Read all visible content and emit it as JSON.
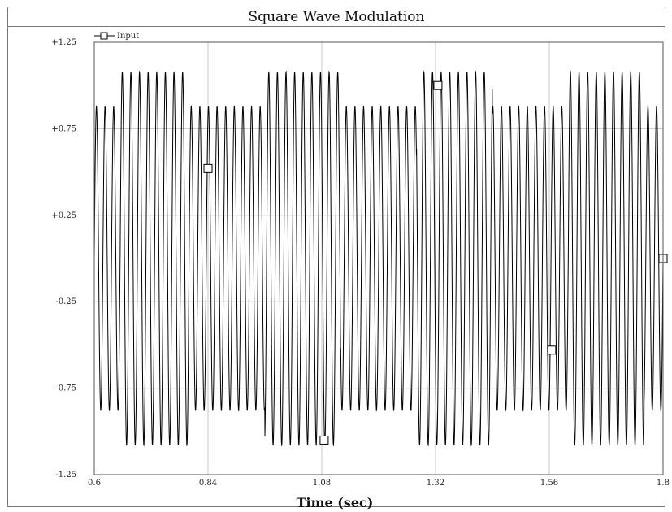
{
  "chart_data": {
    "type": "line",
    "title": "Square Wave Modulation",
    "xlabel": "Time (sec)",
    "ylabel": "",
    "xlim": [
      0.6,
      1.8
    ],
    "ylim": [
      -1.25,
      1.25
    ],
    "x_ticks": [
      "0.6",
      "0.84",
      "1.08",
      "1.32",
      "1.56",
      "1.8"
    ],
    "y_ticks": [
      "+1.25",
      "+0.75",
      "+0.25",
      "-0.25",
      "-0.75",
      "-1.25"
    ],
    "grid": true,
    "legend_position": "top-left",
    "series": [
      {
        "name": "Input",
        "color": "#000000",
        "marker": "open-square",
        "carrier_cycles_per_sec": 55,
        "envelope": [
          {
            "x_start": 0.6,
            "x_end": 0.655,
            "amplitude": 0.88
          },
          {
            "x_start": 0.655,
            "x_end": 0.8,
            "amplitude": 1.08
          },
          {
            "x_start": 0.8,
            "x_end": 0.96,
            "amplitude": 0.88
          },
          {
            "x_start": 0.96,
            "x_end": 1.12,
            "amplitude": 1.08
          },
          {
            "x_start": 1.12,
            "x_end": 1.28,
            "amplitude": 0.88
          },
          {
            "x_start": 1.28,
            "x_end": 1.44,
            "amplitude": 1.08
          },
          {
            "x_start": 1.44,
            "x_end": 1.6,
            "amplitude": 0.88
          },
          {
            "x_start": 1.6,
            "x_end": 1.76,
            "amplitude": 1.08
          },
          {
            "x_start": 1.76,
            "x_end": 1.8,
            "amplitude": 0.88
          }
        ],
        "markers": [
          {
            "x": 0.84,
            "y": 0.52
          },
          {
            "x": 1.085,
            "y": -1.05
          },
          {
            "x": 1.325,
            "y": 1.0
          },
          {
            "x": 1.565,
            "y": -0.53
          },
          {
            "x": 1.8,
            "y": 0.0
          }
        ]
      }
    ]
  }
}
